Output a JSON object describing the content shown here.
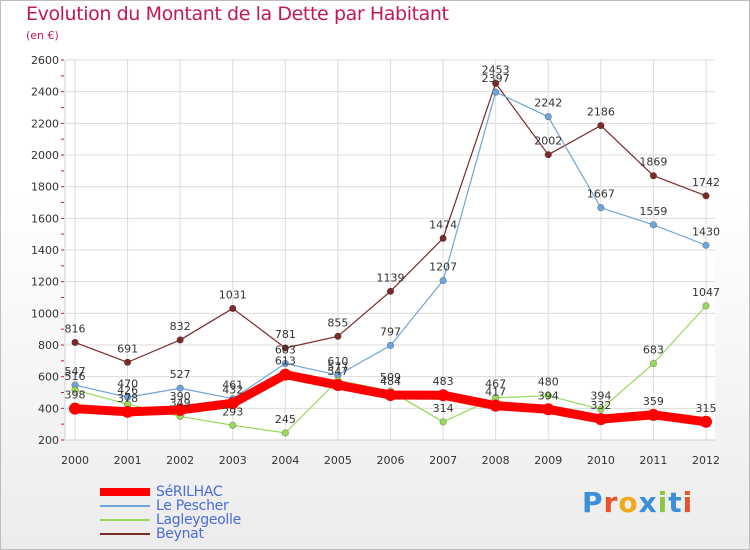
{
  "title": "Evolution du Montant de la Dette par Habitant",
  "subtitle": "(en €)",
  "logo": {
    "text": "Proxiti",
    "letters": [
      {
        "ch": "P",
        "color": "#3a8fd6"
      },
      {
        "ch": "r",
        "color": "#e8522b"
      },
      {
        "ch": "o",
        "color": "#f0a81c"
      },
      {
        "ch": "x",
        "color": "#3a8fd6"
      },
      {
        "ch": "i",
        "color": "#8cc63e"
      },
      {
        "ch": "t",
        "color": "#3a8fd6"
      },
      {
        "ch": "i",
        "color": "#e8522b"
      }
    ]
  },
  "chart_data": {
    "type": "line",
    "title": "Evolution du Montant de la Dette par Habitant",
    "subtitle": "(en €)",
    "x": [
      "2000",
      "2001",
      "2002",
      "2003",
      "2004",
      "2005",
      "2006",
      "2007",
      "2008",
      "2009",
      "2010",
      "2011",
      "2012"
    ],
    "ylim": [
      200,
      2600
    ],
    "yticks": [
      200,
      400,
      600,
      800,
      1000,
      1200,
      1400,
      1600,
      1800,
      2000,
      2200,
      2400,
      2600
    ],
    "grid": true,
    "legend_position": "bottom-left",
    "series": [
      {
        "name": "SéRILHAC",
        "color": "#ff0000",
        "values": [
          398,
          378,
          390,
          432,
          613,
          547,
          484,
          483,
          417,
          394,
          332,
          359,
          315
        ],
        "labels": [
          "398",
          "378",
          "390",
          "432",
          "613",
          "547",
          "484",
          "483",
          "417",
          "394",
          "332",
          "359",
          "315"
        ]
      },
      {
        "name": "Le Pescher",
        "color": "#6ea5d8",
        "values": [
          547,
          470,
          527,
          461,
          683,
          610,
          797,
          1207,
          2397,
          2242,
          1667,
          1559,
          1430
        ],
        "labels": [
          "547",
          "470",
          "527",
          "461",
          "683",
          "610",
          "797",
          "1207",
          "2397",
          "2242",
          "1667",
          "1559",
          "1430"
        ]
      },
      {
        "name": "Lagleygeolle",
        "color": "#98d85b",
        "values": [
          516,
          426,
          349,
          293,
          245,
          577,
          509,
          314,
          467,
          480,
          394,
          683,
          1047
        ],
        "labels": [
          "516",
          "426",
          "349",
          "293",
          "245",
          "577",
          "509",
          "314",
          "467",
          "480",
          "394",
          "683",
          "1047"
        ]
      },
      {
        "name": "Beynat",
        "color": "#7b2a2a",
        "values": [
          816,
          691,
          832,
          1031,
          781,
          855,
          1139,
          1474,
          2453,
          2002,
          2186,
          1869,
          1742
        ],
        "labels": [
          "816",
          "691",
          "832",
          "1031",
          "781",
          "855",
          "1139",
          "1474",
          "2453",
          "2002",
          "2186",
          "1869",
          "1742"
        ]
      }
    ]
  }
}
